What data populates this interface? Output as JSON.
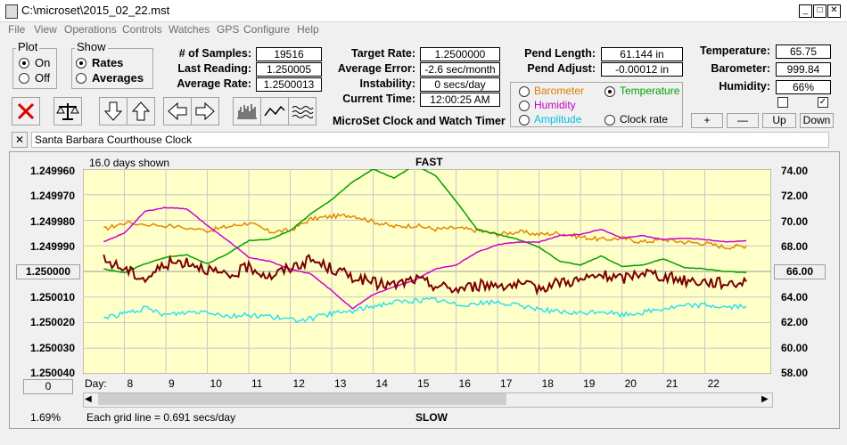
{
  "window": {
    "title": "C:\\microset\\2015_02_22.mst"
  },
  "menu": [
    "File",
    "View",
    "Operations",
    "Controls",
    "Watches",
    "GPS",
    "Configure",
    "Help"
  ],
  "plot_group": {
    "title": "Plot",
    "options": [
      "On",
      "Off"
    ],
    "selected": "On"
  },
  "show_group": {
    "title": "Show",
    "options": [
      "Rates",
      "Averages"
    ],
    "selected": "Rates"
  },
  "stats": {
    "samples_label": "# of Samples:",
    "samples": "19516",
    "last_reading_label": "Last Reading:",
    "last_reading": "1.250005",
    "average_rate_label": "Average Rate:",
    "average_rate": "1.2500013",
    "target_rate_label": "Target Rate:",
    "target_rate": "1.2500000",
    "average_error_label": "Average Error:",
    "average_error": "-2.6 sec/month",
    "instability_label": "Instability:",
    "instability": "0 secs/day",
    "current_time_label": "Current Time:",
    "current_time": "12:00:25 AM",
    "pend_length_label": "Pend Length:",
    "pend_length": "61.144 in",
    "pend_adjust_label": "Pend Adjust:",
    "pend_adjust": "-0.00012 in",
    "temperature_label": "Temperature:",
    "temperature": "65.75",
    "barometer_label": "Barometer:",
    "barometer": "999.84",
    "humidity_label": "Humidity:",
    "humidity": "66%"
  },
  "app_caption": "MicroSet Clock and Watch Timer",
  "sensor_options": [
    {
      "label": "Barometer",
      "color": "#e07b00",
      "selected": false
    },
    {
      "label": "Temperature",
      "color": "#00a000",
      "selected": true
    },
    {
      "label": "Humidity",
      "color": "#c000c0",
      "selected": false
    },
    {
      "label": "Amplitude",
      "color": "#00c0e0",
      "selected": false
    },
    {
      "label": "Clock rate",
      "color": "#000000",
      "selected": false
    }
  ],
  "right_buttons": {
    "plus": "+",
    "minus": "—",
    "up": "Up",
    "down": "Down"
  },
  "checkboxes": {
    "left_checked": false,
    "right_checked": true
  },
  "clock_name": "Santa Barbara Courthouse Clock",
  "toolbar_icons": [
    "delete-icon",
    "balance-icon",
    "arrow-down-icon",
    "arrow-up-icon",
    "arrow-left-icon",
    "arrow-right-icon",
    "bars-chart-icon",
    "line-chart-icon",
    "wave-chart-icon"
  ],
  "chart_data": {
    "type": "line",
    "days_shown": "16.0 days shown",
    "top_label": "FAST",
    "bottom_label": "SLOW",
    "left_axis_ticks": [
      "1.249960",
      "1.249970",
      "1.249980",
      "1.249990",
      "1.250000",
      "1.250010",
      "1.250020",
      "1.250030",
      "1.250040"
    ],
    "left_axis_center_button": "1.250000",
    "left_bottom_button": "0",
    "right_axis_ticks": [
      "74.00",
      "72.00",
      "70.00",
      "68.00",
      "66.00",
      "64.00",
      "62.00",
      "60.00",
      "58.00"
    ],
    "right_axis_center_button": "66.00",
    "xlabel": "Day:",
    "days": [
      "8",
      "9",
      "10",
      "11",
      "12",
      "13",
      "14",
      "15",
      "16",
      "17",
      "18",
      "19",
      "20",
      "21",
      "22"
    ],
    "zoom_text": "1.69%",
    "grid_note": "Each grid line = 0.691 secs/day",
    "series": [
      {
        "name": "Barometer",
        "color": "#e08a00",
        "points": [
          [
            7.5,
            69.3
          ],
          [
            8,
            69.8
          ],
          [
            9,
            69.6
          ],
          [
            10,
            69.2
          ],
          [
            10.5,
            69.5
          ],
          [
            11,
            69.8
          ],
          [
            11.5,
            69.1
          ],
          [
            12,
            69.2
          ],
          [
            12.5,
            70.1
          ],
          [
            13,
            70.3
          ],
          [
            13.5,
            70.4
          ],
          [
            14,
            69.9
          ],
          [
            14.5,
            69.5
          ],
          [
            15,
            69.6
          ],
          [
            15.5,
            69.3
          ],
          [
            16,
            69.4
          ],
          [
            16.5,
            69.2
          ],
          [
            17,
            68.9
          ],
          [
            17.5,
            69.1
          ],
          [
            18,
            68.9
          ],
          [
            18.5,
            69.0
          ],
          [
            19,
            68.7
          ],
          [
            19.5,
            68.5
          ],
          [
            20,
            68.6
          ],
          [
            20.5,
            68.3
          ],
          [
            21,
            68.5
          ],
          [
            21.5,
            68.3
          ],
          [
            22,
            68.2
          ],
          [
            22.5,
            67.9
          ],
          [
            23,
            68.0
          ]
        ]
      },
      {
        "name": "Temperature",
        "color": "#00a000",
        "points": [
          [
            7.5,
            66.2
          ],
          [
            8,
            65.9
          ],
          [
            8.5,
            66.6
          ],
          [
            9,
            67.1
          ],
          [
            9.5,
            67.3
          ],
          [
            10,
            66.6
          ],
          [
            10.5,
            67.4
          ],
          [
            11,
            68.4
          ],
          [
            11.5,
            68.5
          ],
          [
            12,
            69.2
          ],
          [
            12.5,
            70.5
          ],
          [
            13,
            71.6
          ],
          [
            13.5,
            73.0
          ],
          [
            14,
            74.0
          ],
          [
            14.5,
            73.3
          ],
          [
            15,
            74.3
          ],
          [
            15.5,
            73.5
          ],
          [
            16,
            71.5
          ],
          [
            16.5,
            69.3
          ],
          [
            17,
            68.9
          ],
          [
            17.5,
            68.5
          ],
          [
            18,
            67.9
          ],
          [
            18.5,
            66.8
          ],
          [
            19,
            66.5
          ],
          [
            19.5,
            67.2
          ],
          [
            20,
            66.4
          ],
          [
            20.5,
            66.5
          ],
          [
            21,
            67.0
          ],
          [
            21.5,
            66.3
          ],
          [
            22,
            66.2
          ],
          [
            22.5,
            66.0
          ],
          [
            23,
            65.9
          ]
        ]
      },
      {
        "name": "Humidity",
        "color": "#d000d0",
        "points": [
          [
            7.5,
            68.3
          ],
          [
            8,
            69.0
          ],
          [
            8.5,
            70.7
          ],
          [
            9,
            71.0
          ],
          [
            9.5,
            70.9
          ],
          [
            10,
            69.6
          ],
          [
            10.5,
            68.4
          ],
          [
            11,
            67.1
          ],
          [
            11.5,
            66.8
          ],
          [
            12,
            66.2
          ],
          [
            12.5,
            65.8
          ],
          [
            13,
            64.5
          ],
          [
            13.5,
            63.1
          ],
          [
            14,
            64.2
          ],
          [
            14.5,
            64.8
          ],
          [
            15,
            65.3
          ],
          [
            15.5,
            66.2
          ],
          [
            16,
            66.5
          ],
          [
            16.5,
            67.5
          ],
          [
            17,
            68.1
          ],
          [
            17.5,
            68.3
          ],
          [
            18,
            68.3
          ],
          [
            18.5,
            68.8
          ],
          [
            19,
            68.9
          ],
          [
            19.5,
            69.3
          ],
          [
            20,
            68.6
          ],
          [
            20.5,
            68.8
          ],
          [
            21,
            68.5
          ],
          [
            21.5,
            68.6
          ],
          [
            22,
            68.5
          ],
          [
            22.5,
            68.3
          ],
          [
            23,
            68.4
          ]
        ]
      },
      {
        "name": "Amplitude",
        "color": "#30e0f0",
        "points": [
          [
            7.5,
            62.4
          ],
          [
            8,
            62.7
          ],
          [
            8.5,
            63.1
          ],
          [
            9,
            62.6
          ],
          [
            9.5,
            62.8
          ],
          [
            10,
            62.9
          ],
          [
            10.5,
            62.5
          ],
          [
            11,
            62.6
          ],
          [
            11.5,
            62.5
          ],
          [
            12,
            62.2
          ],
          [
            12.5,
            62.3
          ],
          [
            13,
            62.7
          ],
          [
            13.5,
            62.9
          ],
          [
            14,
            63.3
          ],
          [
            14.5,
            63.6
          ],
          [
            15,
            63.7
          ],
          [
            15.5,
            63.8
          ],
          [
            16,
            63.4
          ],
          [
            16.5,
            63.5
          ],
          [
            17,
            63.6
          ],
          [
            17.5,
            63.3
          ],
          [
            18,
            63.1
          ],
          [
            18.5,
            62.8
          ],
          [
            19,
            62.7
          ],
          [
            19.5,
            62.9
          ],
          [
            20,
            62.6
          ],
          [
            20.5,
            62.8
          ],
          [
            21,
            63.1
          ],
          [
            21.5,
            63.3
          ],
          [
            22,
            63.4
          ],
          [
            22.5,
            63.2
          ],
          [
            23,
            63.3
          ]
        ]
      },
      {
        "name": "Clock rate",
        "color": "#7a0000",
        "points": [
          [
            7.5,
            66.9
          ],
          [
            8,
            66.2
          ],
          [
            8.5,
            65.4
          ],
          [
            9,
            66.6
          ],
          [
            9.5,
            66.8
          ],
          [
            10,
            66.2
          ],
          [
            10.5,
            65.5
          ],
          [
            11,
            66.4
          ],
          [
            11.5,
            65.6
          ],
          [
            12,
            66.3
          ],
          [
            12.5,
            66.9
          ],
          [
            13,
            66.2
          ],
          [
            13.5,
            65.6
          ],
          [
            14,
            65.1
          ],
          [
            14.5,
            64.9
          ],
          [
            15,
            65.4
          ],
          [
            15.5,
            64.9
          ],
          [
            16,
            64.6
          ],
          [
            16.5,
            64.9
          ],
          [
            17,
            65.0
          ],
          [
            17.5,
            64.9
          ],
          [
            18,
            64.7
          ],
          [
            18.5,
            65.2
          ],
          [
            19,
            65.3
          ],
          [
            19.5,
            65.7
          ],
          [
            20,
            65.4
          ],
          [
            20.5,
            66.0
          ],
          [
            21,
            65.6
          ],
          [
            21.5,
            65.3
          ],
          [
            22,
            65.2
          ],
          [
            22.5,
            65.1
          ],
          [
            23,
            65.2
          ]
        ]
      }
    ]
  }
}
